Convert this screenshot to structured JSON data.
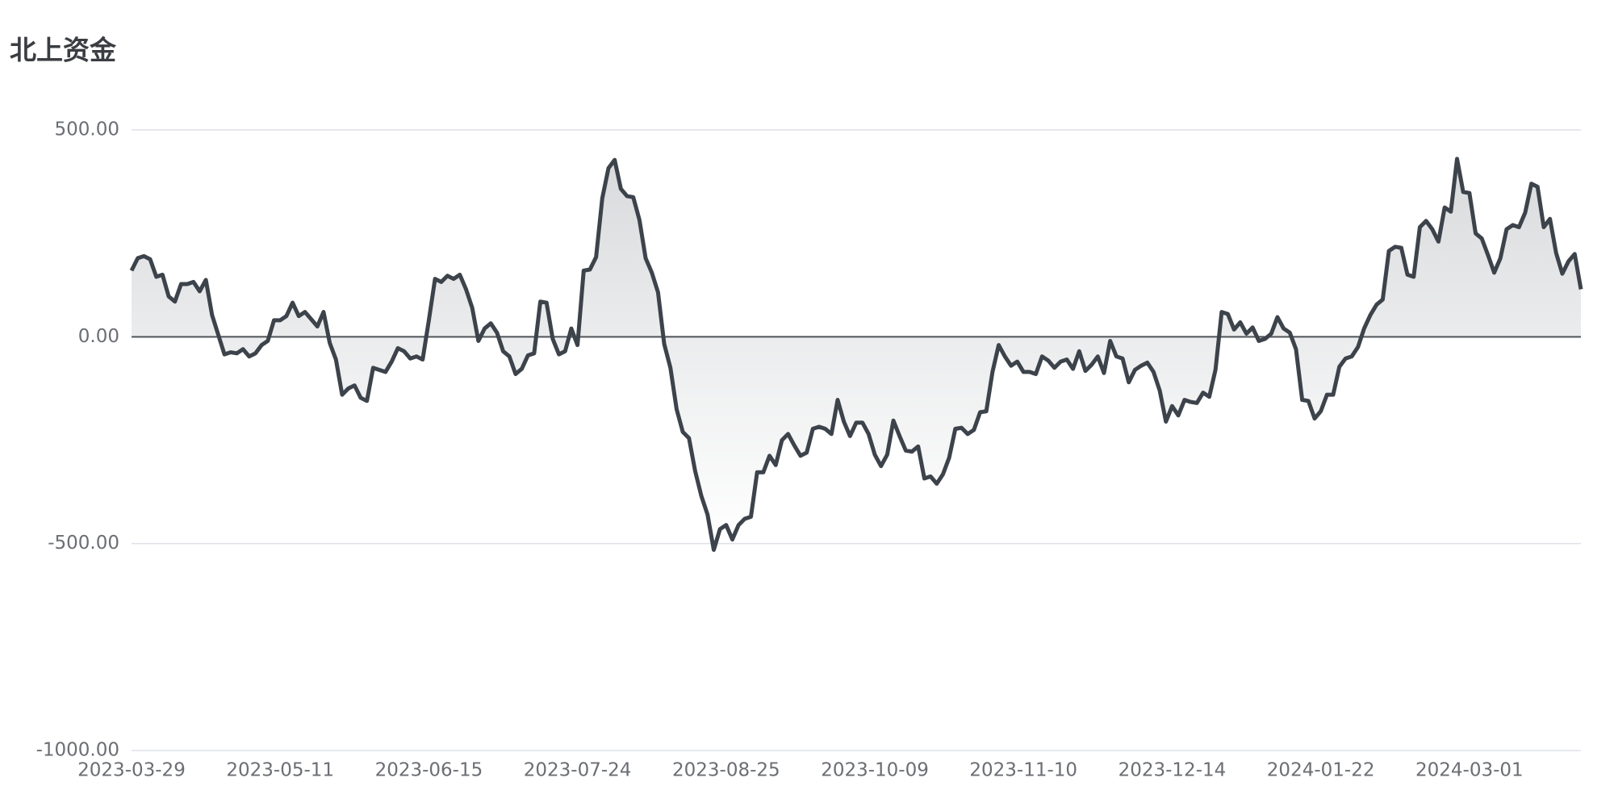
{
  "chart_data": {
    "type": "line",
    "title": "北上资金",
    "color": "#3d434b",
    "area": true,
    "grid": true,
    "ylim": [
      -1000,
      500
    ],
    "yticks": [
      {
        "value": 500,
        "label": "500.00"
      },
      {
        "value": 0,
        "label": "0.00"
      },
      {
        "value": -500,
        "label": "-500.00"
      },
      {
        "value": -1000,
        "label": "-1000.00"
      }
    ],
    "categories": [
      "2023-03-29",
      null,
      null,
      null,
      null,
      null,
      null,
      null,
      null,
      null,
      null,
      null,
      null,
      null,
      null,
      null,
      null,
      null,
      null,
      null,
      null,
      null,
      null,
      null,
      "2023-05-11",
      null,
      null,
      null,
      null,
      null,
      null,
      null,
      null,
      null,
      null,
      null,
      null,
      null,
      null,
      null,
      null,
      null,
      null,
      null,
      null,
      null,
      null,
      null,
      "2023-06-15",
      null,
      null,
      null,
      null,
      null,
      null,
      null,
      null,
      null,
      null,
      null,
      null,
      null,
      null,
      null,
      null,
      null,
      null,
      null,
      null,
      null,
      null,
      null,
      "2023-07-24",
      null,
      null,
      null,
      null,
      null,
      null,
      null,
      null,
      null,
      null,
      null,
      null,
      null,
      null,
      null,
      null,
      null,
      null,
      null,
      null,
      null,
      null,
      null,
      "2023-08-25",
      null,
      null,
      null,
      null,
      null,
      null,
      null,
      null,
      null,
      null,
      null,
      null,
      null,
      null,
      null,
      null,
      null,
      null,
      null,
      null,
      null,
      null,
      null,
      "2023-10-09",
      null,
      null,
      null,
      null,
      null,
      null,
      null,
      null,
      null,
      null,
      null,
      null,
      null,
      null,
      null,
      null,
      null,
      null,
      null,
      null,
      null,
      null,
      null,
      "2023-11-10",
      null,
      null,
      null,
      null,
      null,
      null,
      null,
      null,
      null,
      null,
      null,
      null,
      null,
      null,
      null,
      null,
      null,
      null,
      null,
      null,
      null,
      null,
      null,
      "2023-12-14",
      null,
      null,
      null,
      null,
      null,
      null,
      null,
      null,
      null,
      null,
      null,
      null,
      null,
      null,
      null,
      null,
      null,
      null,
      null,
      null,
      null,
      null,
      null,
      "2024-01-22",
      null,
      null,
      null,
      null,
      null,
      null,
      null,
      null,
      null,
      null,
      null,
      null,
      null,
      null,
      null,
      null,
      null,
      null,
      null,
      null,
      null,
      null,
      null,
      "2024-03-01",
      null,
      null,
      null,
      null,
      null,
      null,
      null,
      null,
      null,
      null,
      null,
      null,
      null,
      null,
      null,
      null,
      null,
      null
    ],
    "values": [
      160,
      190,
      195,
      187.5,
      145,
      150,
      97.5,
      85,
      127.5,
      127.5,
      132.5,
      110,
      137.5,
      52.5,
      5,
      -42.5,
      -37.5,
      -40,
      -30,
      -47.5,
      -40,
      -20,
      -10,
      40,
      40,
      50,
      82.5,
      50,
      60,
      42.5,
      25,
      60,
      -15,
      -55,
      -140,
      -125,
      -117.5,
      -147.5,
      -155,
      -75,
      -80,
      -85,
      -60,
      -27.5,
      -35,
      -52.5,
      -47.5,
      -55,
      40,
      140,
      132.5,
      147.5,
      140,
      150,
      115,
      70,
      -10,
      20,
      32.5,
      10,
      -35,
      -47.5,
      -90,
      -77.5,
      -45,
      -40,
      85,
      82.5,
      -5,
      -42.5,
      -35,
      20,
      -20,
      160,
      162.5,
      192.5,
      335,
      407.5,
      427.5,
      357.5,
      340,
      337.5,
      282.5,
      190,
      155,
      107.5,
      -17.5,
      -75,
      -175,
      -230,
      -245,
      -325,
      -385,
      -430,
      -515,
      -465,
      -455,
      -490,
      -455,
      -440,
      -435,
      -327.5,
      -327.5,
      -287.5,
      -310,
      -250,
      -235,
      -262.5,
      -287.5,
      -280,
      -222.5,
      -217.5,
      -222.5,
      -235,
      -152.5,
      -205,
      -240,
      -207.5,
      -207.5,
      -235,
      -285,
      -312.5,
      -285,
      -202.5,
      -240,
      -275,
      -277.5,
      -265,
      -342.5,
      -337.5,
      -355,
      -332.5,
      -292.5,
      -222.5,
      -220,
      -235,
      -225,
      -182.5,
      -180,
      -85,
      -20,
      -47.5,
      -70,
      -60,
      -85,
      -85,
      -90,
      -47.5,
      -57.5,
      -75,
      -60,
      -55,
      -77.5,
      -35,
      -82.5,
      -67.5,
      -47.5,
      -87.5,
      -10,
      -47.5,
      -52.5,
      -110,
      -80,
      -70,
      -62.5,
      -85,
      -130,
      -205,
      -167.5,
      -190,
      -152.5,
      -157.5,
      -160,
      -135,
      -145,
      -80,
      60,
      55,
      17.5,
      35,
      7.5,
      22.5,
      -10,
      -5,
      7.5,
      47.5,
      20,
      10,
      -30,
      -152.5,
      -155,
      -197.5,
      -180,
      -140,
      -140,
      -72.5,
      -52.5,
      -47.5,
      -25,
      20,
      52.5,
      77.5,
      90,
      207.5,
      217.5,
      215,
      150,
      145,
      265,
      280,
      260,
      230,
      312.5,
      302.5,
      430,
      350,
      347.5,
      250,
      237.5,
      197.5,
      155,
      190,
      260,
      270,
      265,
      300,
      370,
      362.5,
      265,
      285,
      202.5,
      152.5,
      182.5,
      200,
      115
    ]
  }
}
